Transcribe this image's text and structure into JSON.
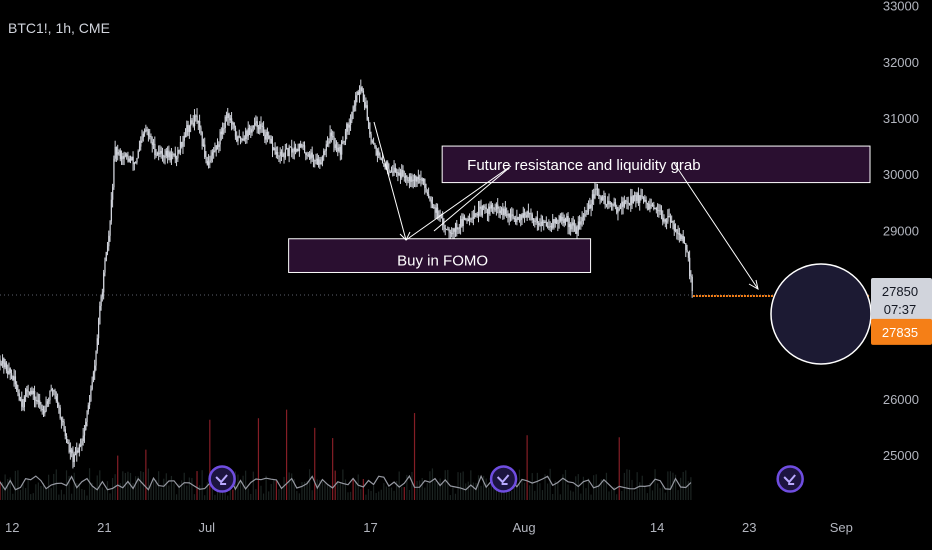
{
  "header": {
    "symbol": "BTC1!, 1h, CME"
  },
  "chart_data": {
    "type": "candlestick",
    "title": "BTC1!, 1h, CME",
    "y_ticks": [
      25000,
      26000,
      27000,
      28000,
      29000,
      30000,
      31000,
      32000,
      33000
    ],
    "y_tick_labels": [
      "25000",
      "26000",
      "",
      "",
      "29000",
      "30000",
      "31000",
      "32000",
      "33000"
    ],
    "ylim": [
      24200,
      33100
    ],
    "x_ticks": [
      {
        "label": "12",
        "day": -19
      },
      {
        "label": "21",
        "day": -10
      },
      {
        "label": "Jul",
        "day": 0
      },
      {
        "label": "17",
        "day": 16
      },
      {
        "label": "Aug",
        "day": 31
      },
      {
        "label": "14",
        "day": 44
      },
      {
        "label": "23",
        "day": 53
      },
      {
        "label": "Sep",
        "day": 62
      }
    ],
    "xlim_days": [
      -20.2,
      64.8
    ],
    "last_bar_day": 47.5,
    "price_path": [
      {
        "day": -20.2,
        "price": 26700
      },
      {
        "day": -19,
        "price": 26400
      },
      {
        "day": -18,
        "price": 25900
      },
      {
        "day": -17.5,
        "price": 26200
      },
      {
        "day": -16,
        "price": 25800
      },
      {
        "day": -15,
        "price": 26200
      },
      {
        "day": -14,
        "price": 25500
      },
      {
        "day": -13.5,
        "price": 25100
      },
      {
        "day": -13,
        "price": 24900
      },
      {
        "day": -12,
        "price": 25400
      },
      {
        "day": -11,
        "price": 26500
      },
      {
        "day": -10.5,
        "price": 27500
      },
      {
        "day": -10,
        "price": 28300
      },
      {
        "day": -9.5,
        "price": 29000
      },
      {
        "day": -9,
        "price": 30400
      },
      {
        "day": -7,
        "price": 30200
      },
      {
        "day": -6,
        "price": 30800
      },
      {
        "day": -5,
        "price": 30400
      },
      {
        "day": -3,
        "price": 30300
      },
      {
        "day": -2,
        "price": 30800
      },
      {
        "day": -1,
        "price": 31000
      },
      {
        "day": 0,
        "price": 30200
      },
      {
        "day": 1,
        "price": 30500
      },
      {
        "day": 2,
        "price": 31100
      },
      {
        "day": 3,
        "price": 30600
      },
      {
        "day": 5,
        "price": 30900
      },
      {
        "day": 7,
        "price": 30300
      },
      {
        "day": 9,
        "price": 30500
      },
      {
        "day": 11,
        "price": 30200
      },
      {
        "day": 12,
        "price": 30700
      },
      {
        "day": 13,
        "price": 30400
      },
      {
        "day": 14,
        "price": 31000
      },
      {
        "day": 15,
        "price": 31600
      },
      {
        "day": 15.5,
        "price": 31200
      },
      {
        "day": 16,
        "price": 30700
      },
      {
        "day": 17,
        "price": 30200
      },
      {
        "day": 19,
        "price": 30000
      },
      {
        "day": 21,
        "price": 29900
      },
      {
        "day": 22,
        "price": 29500
      },
      {
        "day": 23,
        "price": 29100
      },
      {
        "day": 24,
        "price": 29000
      },
      {
        "day": 26,
        "price": 29300
      },
      {
        "day": 28,
        "price": 29400
      },
      {
        "day": 29,
        "price": 29300
      },
      {
        "day": 30,
        "price": 29200
      },
      {
        "day": 31,
        "price": 29300
      },
      {
        "day": 33,
        "price": 29100
      },
      {
        "day": 35,
        "price": 29200
      },
      {
        "day": 36,
        "price": 29000
      },
      {
        "day": 37,
        "price": 29300
      },
      {
        "day": 38,
        "price": 29700
      },
      {
        "day": 39,
        "price": 29500
      },
      {
        "day": 40,
        "price": 29400
      },
      {
        "day": 42,
        "price": 29600
      },
      {
        "day": 44,
        "price": 29300
      },
      {
        "day": 45,
        "price": 29200
      },
      {
        "day": 46,
        "price": 29000
      },
      {
        "day": 46.5,
        "price": 28800
      },
      {
        "day": 47,
        "price": 28500
      },
      {
        "day": 47.5,
        "price": 27850
      }
    ],
    "current_price_line": 27850,
    "price_tags": [
      {
        "label": "27850",
        "sub": "07:37",
        "price": 27850,
        "bg": "#d1d4dc",
        "fg": "#131722"
      },
      {
        "label": "27835",
        "price": 27300,
        "bg": "#f57f17",
        "fg": "#ffffff"
      }
    ],
    "projection_line": {
      "price": 27835,
      "from_day": 47.5,
      "to_day": 64.8,
      "color": "#f57f17"
    },
    "annotations": [
      {
        "text": "Buy in FOMO",
        "box_days": [
          8,
          37.5
        ],
        "box_prices": [
          28250,
          28850
        ]
      },
      {
        "text": "Future resistance and liquidity grab",
        "box_days": [
          23,
          64.8
        ],
        "box_prices": [
          29850,
          30500
        ]
      }
    ],
    "colors": {
      "background": "#000000",
      "candles": "#d1d4dc",
      "annotation_fill": "#2a0f30",
      "annotation_border": "#ffffff",
      "volume": "#26302e",
      "volume_spike": "#b22833",
      "circle_fill": "#1c1a33",
      "dotted_line": "#5d606b",
      "event_marker": "#6f4de0"
    },
    "event_markers": [
      {
        "day": 1.5
      },
      {
        "day": 29
      },
      {
        "day": 57
      }
    ]
  }
}
